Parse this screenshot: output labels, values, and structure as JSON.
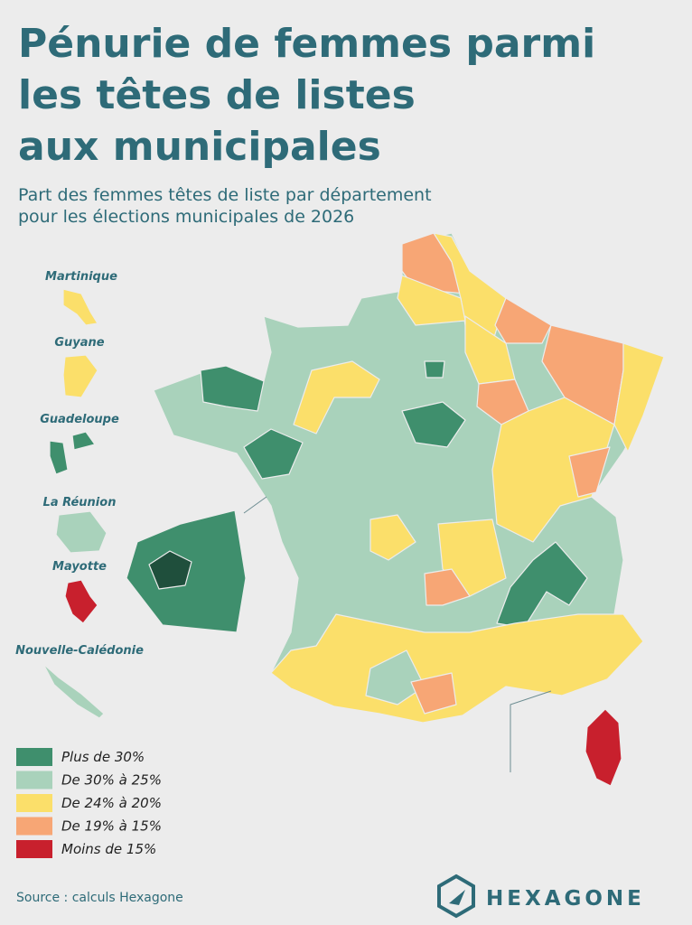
{
  "header": {
    "title": [
      "Pénurie de femmes parmi",
      "les têtes de listes",
      "aux municipales"
    ],
    "subtitle": [
      "Part des femmes têtes de liste par département",
      "pour les élections municipales de 2026"
    ]
  },
  "overseas": [
    {
      "label": "Martinique"
    },
    {
      "label": "Guyane"
    },
    {
      "label": "Guadeloupe"
    },
    {
      "label": "La Réunion"
    },
    {
      "label": "Mayotte"
    },
    {
      "label": "Nouvelle-Calédonie"
    }
  ],
  "legend": [
    {
      "label": "Plus de 30%",
      "color": "#3f8f6d"
    },
    {
      "label": "De 30% à 25%",
      "color": "#a9d2bb"
    },
    {
      "label": "De 24% à 20%",
      "color": "#fbdf6a"
    },
    {
      "label": "De 19% à 15%",
      "color": "#f7a675"
    },
    {
      "label": "Moins de 15%",
      "color": "#c8202d"
    }
  ],
  "source": "Source : calculs Hexagone",
  "logo": "HEXAGONE"
}
